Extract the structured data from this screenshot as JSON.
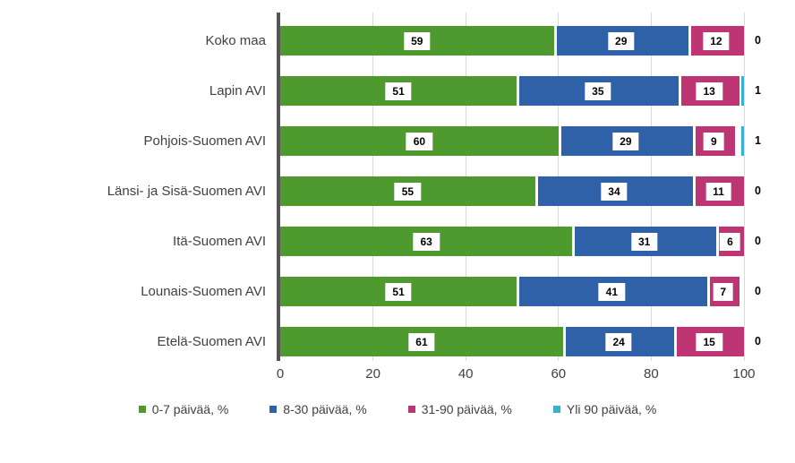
{
  "chart_data": {
    "type": "bar",
    "subtype": "horizontal-stacked",
    "title": "",
    "xlabel": "",
    "ylabel": "",
    "xlim": [
      0,
      100
    ],
    "x_ticks": [
      0,
      20,
      40,
      60,
      80,
      100
    ],
    "grid": true,
    "legend_position": "bottom",
    "categories": [
      "Koko maa",
      "Lapin AVI",
      "Pohjois-Suomen AVI",
      "Länsi- ja Sisä-Suomen AVI",
      "Itä-Suomen AVI",
      "Lounais-Suomen AVI",
      "Etelä-Suomen AVI"
    ],
    "series": [
      {
        "name": "0-7 päivää, %",
        "color": "#4F9A2E",
        "values": [
          59,
          51,
          60,
          55,
          63,
          51,
          61
        ]
      },
      {
        "name": "8-30 päivää, %",
        "color": "#2E61A8",
        "values": [
          29,
          35,
          29,
          34,
          31,
          41,
          24
        ]
      },
      {
        "name": "31-90 päivää, %",
        "color": "#BE3573",
        "values": [
          12,
          13,
          9,
          11,
          6,
          7,
          15
        ]
      },
      {
        "name": "Yli 90 päivää, %",
        "color": "#39AFD1",
        "values": [
          0,
          1,
          1,
          0,
          0,
          0,
          0
        ]
      }
    ],
    "data_label_style": "white box with bold black number inside each segment; last series value printed outside right end of bar"
  },
  "colors": {
    "axis_line": "#555555",
    "gridline": "#d9d9d9",
    "text": "#404040",
    "data_label_text": "#000000",
    "background": "#ffffff"
  }
}
